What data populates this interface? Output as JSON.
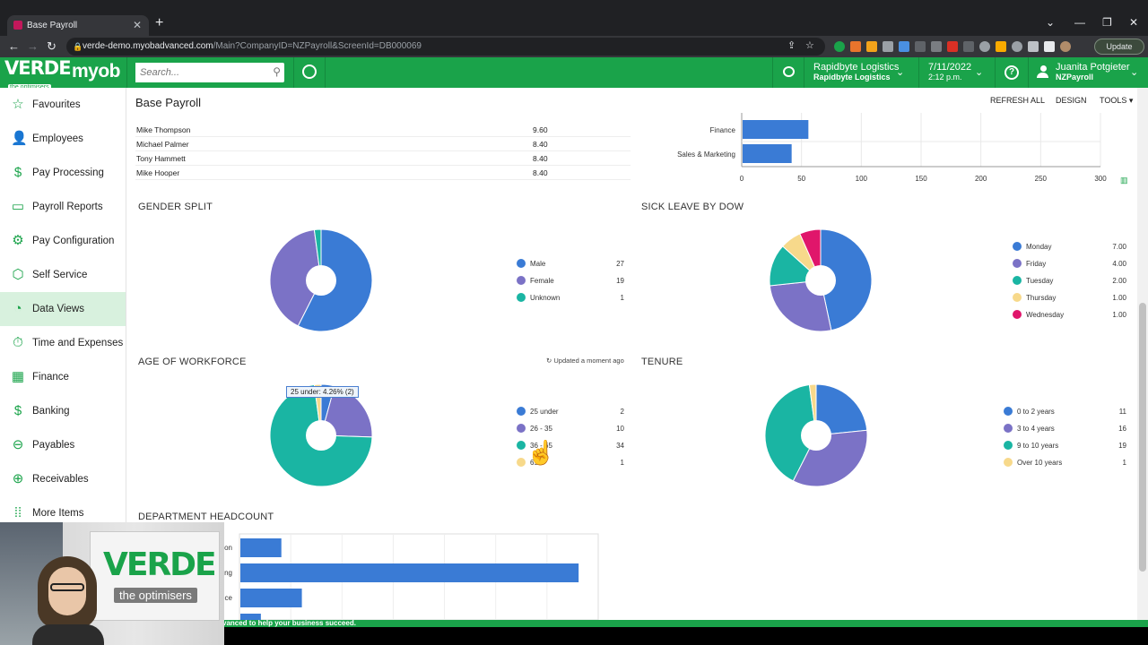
{
  "browser": {
    "tab_title": "Base Payroll",
    "url_host": "verde-demo.myobadvanced.com",
    "url_path": "/Main?CompanyID=NZPayroll&ScreenId=DB000069",
    "update_label": "Update"
  },
  "header": {
    "logo_big": "VERDE",
    "logo_small": "the optimisers",
    "myob": "myob",
    "search_placeholder": "Search...",
    "company_name": "Rapidbyte Logistics",
    "company_sub": "Rapidbyte Logistics",
    "date": "7/11/2022",
    "time": "2:12 p.m.",
    "user_name": "Juanita Potgieter",
    "user_sub": "NZPayroll",
    "help": "?"
  },
  "sidebar": {
    "items": [
      {
        "label": "Favourites",
        "icon": "star-icon",
        "glyph": "☆"
      },
      {
        "label": "Employees",
        "icon": "person-icon",
        "glyph": "👤"
      },
      {
        "label": "Pay Processing",
        "icon": "dollar-doc-icon",
        "glyph": "$"
      },
      {
        "label": "Payroll Reports",
        "icon": "monitor-icon",
        "glyph": "▭"
      },
      {
        "label": "Pay Configuration",
        "icon": "gear-icon",
        "glyph": "⚙"
      },
      {
        "label": "Self Service",
        "icon": "cube-icon",
        "glyph": "⬡"
      },
      {
        "label": "Data Views",
        "icon": "pie-icon",
        "glyph": "◔"
      },
      {
        "label": "Time and Expenses",
        "icon": "stopwatch-icon",
        "glyph": "⏱"
      },
      {
        "label": "Finance",
        "icon": "calculator-icon",
        "glyph": "▦"
      },
      {
        "label": "Banking",
        "icon": "dollar-icon",
        "glyph": "$"
      },
      {
        "label": "Payables",
        "icon": "minus-circle-icon",
        "glyph": "⊖"
      },
      {
        "label": "Receivables",
        "icon": "plus-circle-icon",
        "glyph": "⊕"
      },
      {
        "label": "More Items",
        "icon": "grid-icon",
        "glyph": "⁞⁞"
      }
    ]
  },
  "page": {
    "title": "Base Payroll",
    "refresh_all": "REFRESH ALL",
    "design": "DESIGN",
    "tools": "TOOLS ▾"
  },
  "rate_table": {
    "rows": [
      {
        "name": "Mike Thompson",
        "value": "9.60"
      },
      {
        "name": "Michael Palmer",
        "value": "8.40"
      },
      {
        "name": "Tony Hammett",
        "value": "8.40"
      },
      {
        "name": "Mike Hooper",
        "value": "8.40"
      }
    ]
  },
  "sections": {
    "gender": "GENDER SPLIT",
    "sick": "SICK LEAVE BY DOW",
    "age": "AGE OF WORKFORCE",
    "tenure": "TENURE",
    "dept": "DEPARTMENT HEADCOUNT",
    "updated": "Updated a moment ago",
    "tooltip": "25 under: 4.26% (2)"
  },
  "footer_text": "vanced to help your business succeed.",
  "colors": {
    "green": "#1aa34a",
    "blue": "#3a7bd5",
    "purple": "#7b72c6",
    "teal": "#1ab5a3",
    "yellow": "#f7d98b",
    "pink": "#e0166b"
  },
  "chart_data": [
    {
      "type": "bar",
      "orientation": "horizontal",
      "categories": [
        "Finance",
        "Sales & Marketing"
      ],
      "values": [
        55,
        41
      ],
      "xlim": [
        0,
        300
      ],
      "xticks": [
        "0",
        "50",
        "100",
        "150",
        "200",
        "250",
        "300"
      ]
    },
    {
      "type": "pie",
      "title": "GENDER SPLIT",
      "labels": [
        "Male",
        "Female",
        "Unknown"
      ],
      "values": [
        27,
        19,
        1
      ],
      "display": [
        "27",
        "19",
        "1"
      ],
      "colors": [
        "#3a7bd5",
        "#7b72c6",
        "#1ab5a3"
      ]
    },
    {
      "type": "pie",
      "title": "SICK LEAVE BY DOW",
      "labels": [
        "Monday",
        "Friday",
        "Tuesday",
        "Thursday",
        "Wednesday"
      ],
      "values": [
        7,
        4,
        2,
        1,
        1
      ],
      "display": [
        "7.00",
        "4.00",
        "2.00",
        "1.00",
        "1.00"
      ],
      "colors": [
        "#3a7bd5",
        "#7b72c6",
        "#1ab5a3",
        "#f7d98b",
        "#e0166b"
      ]
    },
    {
      "type": "pie",
      "title": "AGE OF WORKFORCE",
      "labels": [
        "25 under",
        "26 - 35",
        "36 - 65",
        "65 +"
      ],
      "values": [
        2,
        10,
        34,
        1
      ],
      "display": [
        "2",
        "10",
        "34",
        "1"
      ],
      "colors": [
        "#3a7bd5",
        "#7b72c6",
        "#1ab5a3",
        "#f7d98b"
      ]
    },
    {
      "type": "pie",
      "title": "TENURE",
      "labels": [
        "0 to 2 years",
        "3 to 4 years",
        "9 to 10 years",
        "Over 10 years"
      ],
      "values": [
        11,
        16,
        19,
        1
      ],
      "display": [
        "11",
        "16",
        "19",
        "1"
      ],
      "colors": [
        "#3a7bd5",
        "#7b72c6",
        "#1ab5a3",
        "#f7d98b"
      ]
    },
    {
      "type": "bar",
      "orientation": "horizontal",
      "title": "DEPARTMENT HEADCOUNT",
      "category_labels_visible": [
        "on",
        "ng",
        "ce"
      ],
      "values": [
        4,
        33,
        6,
        2
      ]
    }
  ]
}
